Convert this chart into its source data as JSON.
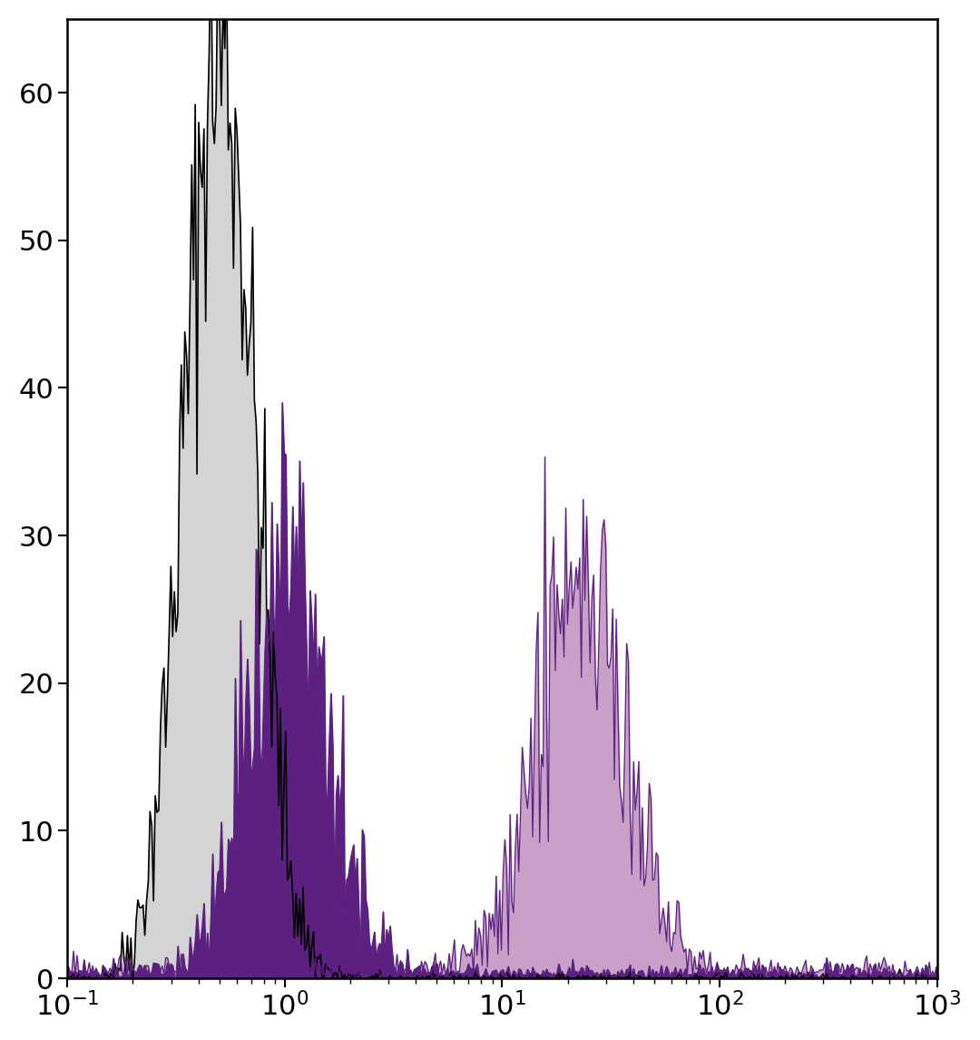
{
  "title": "",
  "xlabel": "",
  "ylabel": "",
  "xlim_log": [
    -1,
    3
  ],
  "ylim": [
    0,
    65
  ],
  "yticks": [
    0,
    10,
    20,
    30,
    40,
    50,
    60
  ],
  "background_color": "#ffffff",
  "plot_bg_color": "#ffffff",
  "border_color": "#000000",
  "gray_fill_color": "#d4d4d4",
  "gray_line_color": "#000000",
  "purple_fill_color": "#5b2080",
  "pink_fill_color": "#c8a0c8",
  "purple_line_color": "#5b2080",
  "seed": 42,
  "gray_peak_log": -0.3,
  "gray_sigma_log": 0.16,
  "gray_amplitude": 63,
  "purple_peak_log": 0.02,
  "purple_sigma_log": 0.18,
  "purple_amplitude": 29,
  "pink_peak_log": 1.35,
  "pink_sigma_log": 0.2,
  "pink_amplitude": 27,
  "bins": 500
}
